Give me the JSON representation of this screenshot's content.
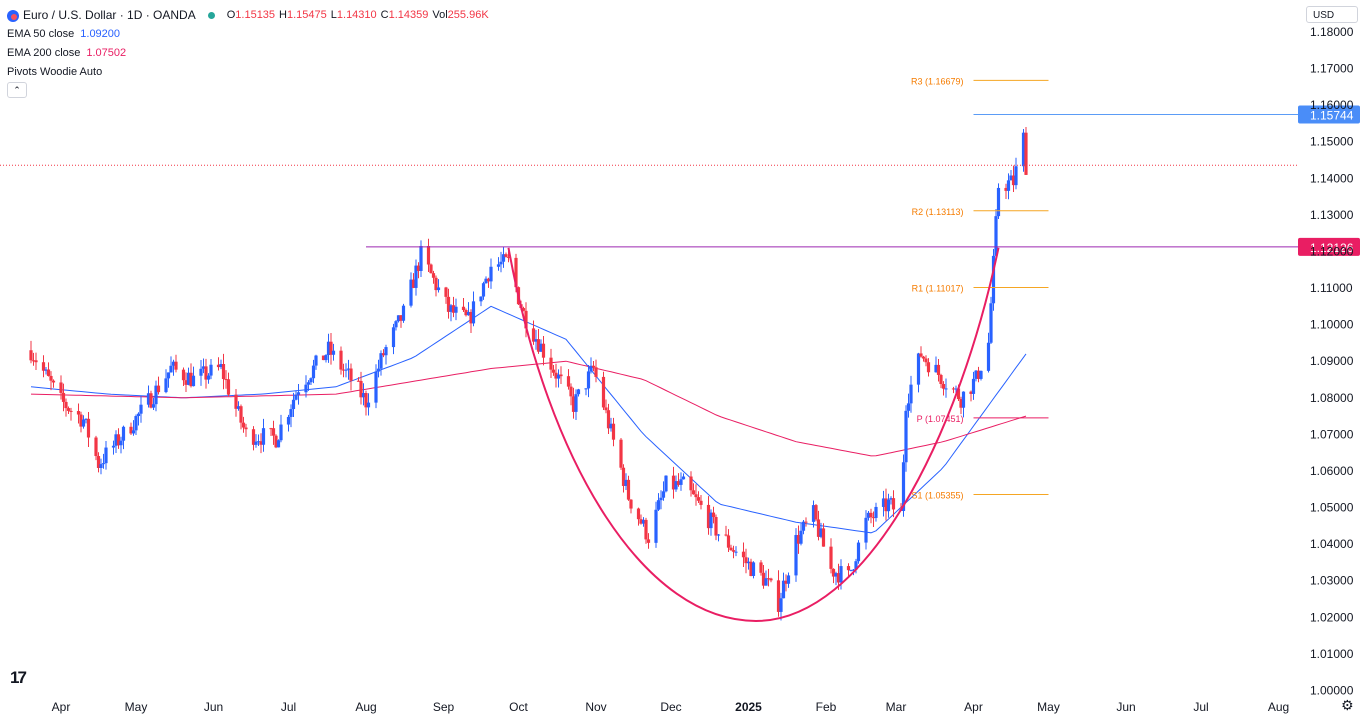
{
  "legend": {
    "title": "Euro / U.S. Dollar · 1D · OANDA",
    "o_label": "O",
    "o": "1.15135",
    "h_label": "H",
    "h": "1.15475",
    "l_label": "L",
    "l": "1.14310",
    "c_label": "C",
    "c": "1.14359",
    "vol_label": "Vol",
    "vol": "255.96K",
    "ema50_label": "EMA 50 close",
    "ema50": "1.09200",
    "ema200_label": "EMA 200 close",
    "ema200": "1.07502",
    "pivots_label": "Pivots Woodie Auto",
    "collapse_icon": "chevron-up-icon"
  },
  "currency": "USD",
  "colors": {
    "up": "#2962ff",
    "down": "#f23645",
    "ema50": "#2962ff",
    "ema200": "#e91e63",
    "pivot_line": "#f5a623",
    "pivot_label": "#f57c00",
    "p_line": "#e91e63",
    "resistance": "#9c27b0",
    "curve": "#e91e63",
    "price_line": "#f23645",
    "high_line": "#5b9cf6",
    "badge_blue": "#4a8df8",
    "badge_pink": "#e91e63"
  },
  "chart_data": {
    "type": "candlestick",
    "symbol": "EURUSD",
    "interval": "1D",
    "ylim": [
      1.0,
      1.18
    ],
    "y_ticks": [
      "1.18000",
      "1.17000",
      "1.16000",
      "1.15000",
      "1.14000",
      "1.13000",
      "1.12000",
      "1.11000",
      "1.10000",
      "1.09000",
      "1.08000",
      "1.07000",
      "1.06000",
      "1.05000",
      "1.04000",
      "1.03000",
      "1.02000",
      "1.01000",
      "1.00000"
    ],
    "x_ticks": [
      "Apr",
      "May",
      "Jun",
      "Jul",
      "Aug",
      "Sep",
      "Oct",
      "Nov",
      "Dec",
      "2025",
      "Feb",
      "Mar",
      "Apr",
      "May",
      "Jun",
      "Jul",
      "Aug"
    ],
    "close_path": [
      [
        "2024-03-20",
        1.093
      ],
      [
        "2024-04-01",
        1.079
      ],
      [
        "2024-04-10",
        1.074
      ],
      [
        "2024-04-16",
        1.062
      ],
      [
        "2024-04-26",
        1.07
      ],
      [
        "2024-05-03",
        1.076
      ],
      [
        "2024-05-15",
        1.088
      ],
      [
        "2024-05-24",
        1.085
      ],
      [
        "2024-06-04",
        1.088
      ],
      [
        "2024-06-10",
        1.077
      ],
      [
        "2024-06-14",
        1.07
      ],
      [
        "2024-06-26",
        1.069
      ],
      [
        "2024-07-05",
        1.083
      ],
      [
        "2024-07-17",
        1.093
      ],
      [
        "2024-07-26",
        1.085
      ],
      [
        "2024-08-01",
        1.079
      ],
      [
        "2024-08-08",
        1.092
      ],
      [
        "2024-08-16",
        1.103
      ],
      [
        "2024-08-23",
        1.119
      ],
      [
        "2024-09-03",
        1.104
      ],
      [
        "2024-09-11",
        1.101
      ],
      [
        "2024-09-20",
        1.116
      ],
      [
        "2024-09-27",
        1.117
      ],
      [
        "2024-10-03",
        1.103
      ],
      [
        "2024-10-10",
        1.094
      ],
      [
        "2024-10-23",
        1.078
      ],
      [
        "2024-10-31",
        1.088
      ],
      [
        "2024-11-06",
        1.073
      ],
      [
        "2024-11-14",
        1.053
      ],
      [
        "2024-11-22",
        1.042
      ],
      [
        "2024-11-29",
        1.056
      ],
      [
        "2024-12-06",
        1.056
      ],
      [
        "2024-12-13",
        1.05
      ],
      [
        "2024-12-20",
        1.043
      ],
      [
        "2024-12-31",
        1.035
      ],
      [
        "2025-01-08",
        1.03
      ],
      [
        "2025-01-13",
        1.024
      ],
      [
        "2025-01-20",
        1.041
      ],
      [
        "2025-01-27",
        1.048
      ],
      [
        "2025-02-03",
        1.033
      ],
      [
        "2025-02-10",
        1.031
      ],
      [
        "2025-02-17",
        1.046
      ],
      [
        "2025-02-26",
        1.051
      ],
      [
        "2025-03-03",
        1.048
      ],
      [
        "2025-03-05",
        1.079
      ],
      [
        "2025-03-11",
        1.092
      ],
      [
        "2025-03-20",
        1.085
      ],
      [
        "2025-03-27",
        1.08
      ],
      [
        "2025-04-02",
        1.085
      ],
      [
        "2025-04-07",
        1.095
      ],
      [
        "2025-04-11",
        1.138
      ],
      [
        "2025-04-17",
        1.139
      ],
      [
        "2025-04-21",
        1.151
      ],
      [
        "2025-04-22",
        1.1436
      ]
    ],
    "ema50_path": [
      [
        "2024-03-20",
        1.083
      ],
      [
        "2024-04-20",
        1.081
      ],
      [
        "2024-05-20",
        1.08
      ],
      [
        "2024-06-20",
        1.081
      ],
      [
        "2024-07-20",
        1.083
      ],
      [
        "2024-08-20",
        1.091
      ],
      [
        "2024-09-20",
        1.105
      ],
      [
        "2024-10-20",
        1.096
      ],
      [
        "2024-11-20",
        1.07
      ],
      [
        "2024-12-20",
        1.051
      ],
      [
        "2025-01-20",
        1.046
      ],
      [
        "2025-02-20",
        1.043
      ],
      [
        "2025-03-20",
        1.061
      ],
      [
        "2025-04-22",
        1.092
      ]
    ],
    "ema200_path": [
      [
        "2024-03-20",
        1.081
      ],
      [
        "2024-05-20",
        1.08
      ],
      [
        "2024-07-20",
        1.081
      ],
      [
        "2024-09-20",
        1.088
      ],
      [
        "2024-10-20",
        1.09
      ],
      [
        "2024-11-20",
        1.085
      ],
      [
        "2024-12-20",
        1.075
      ],
      [
        "2025-01-20",
        1.068
      ],
      [
        "2025-02-20",
        1.064
      ],
      [
        "2025-03-20",
        1.068
      ],
      [
        "2025-04-22",
        1.075
      ]
    ],
    "pivots": [
      {
        "label": "R3 (1.16679)",
        "value": 1.16679
      },
      {
        "label": "R2 (1.13113)",
        "value": 1.13113
      },
      {
        "label": "R1 (1.11017)",
        "value": 1.11017
      },
      {
        "label": "P (1.07451)",
        "value": 1.07451
      },
      {
        "label": "S1 (1.05355)",
        "value": 1.05355
      }
    ],
    "pivot_start": "2025-04-01",
    "pivot_end": "2025-05-01",
    "horizontal_lines": [
      {
        "value": 1.15744,
        "label": "1.15744",
        "from": "2025-04-01"
      },
      {
        "value": 1.12126,
        "label": "1.12126",
        "from": "2024-08-01"
      }
    ],
    "last_price": 1.14359,
    "rounding_bottom": {
      "start": [
        "2024-09-27",
        1.121
      ],
      "bottom": [
        "2025-01-04",
        1.019
      ],
      "end": [
        "2025-04-11",
        1.121
      ]
    }
  }
}
